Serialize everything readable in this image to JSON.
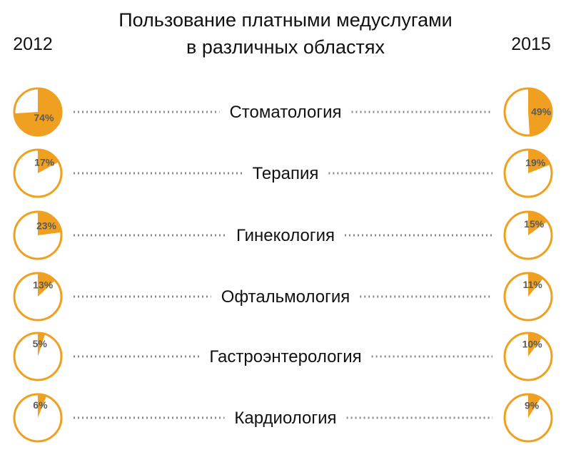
{
  "chart_data": {
    "type": "pie",
    "title_lines": [
      "Пользование платными медуслугами",
      "в различных областях"
    ],
    "years": [
      "2012",
      "2015"
    ],
    "categories": [
      "Стоматология",
      "Терапия",
      "Гинекология",
      "Офтальмология",
      "Гастроэнтерология",
      "Кардиология"
    ],
    "series": [
      {
        "name": "2012",
        "values": [
          74,
          17,
          23,
          13,
          5,
          6
        ],
        "labels": [
          "74%",
          "17%",
          "23%",
          "13%",
          "5%",
          "6%"
        ]
      },
      {
        "name": "2015",
        "values": [
          49,
          19,
          15,
          11,
          10,
          9
        ],
        "labels": [
          "49%",
          "19%",
          "15%",
          "11%",
          "10%",
          "9%"
        ]
      }
    ],
    "colors": {
      "fill": "#F0A020",
      "outline": "#F0A020",
      "background": "#FFFFFF",
      "dots": "#8A8A8A"
    }
  }
}
